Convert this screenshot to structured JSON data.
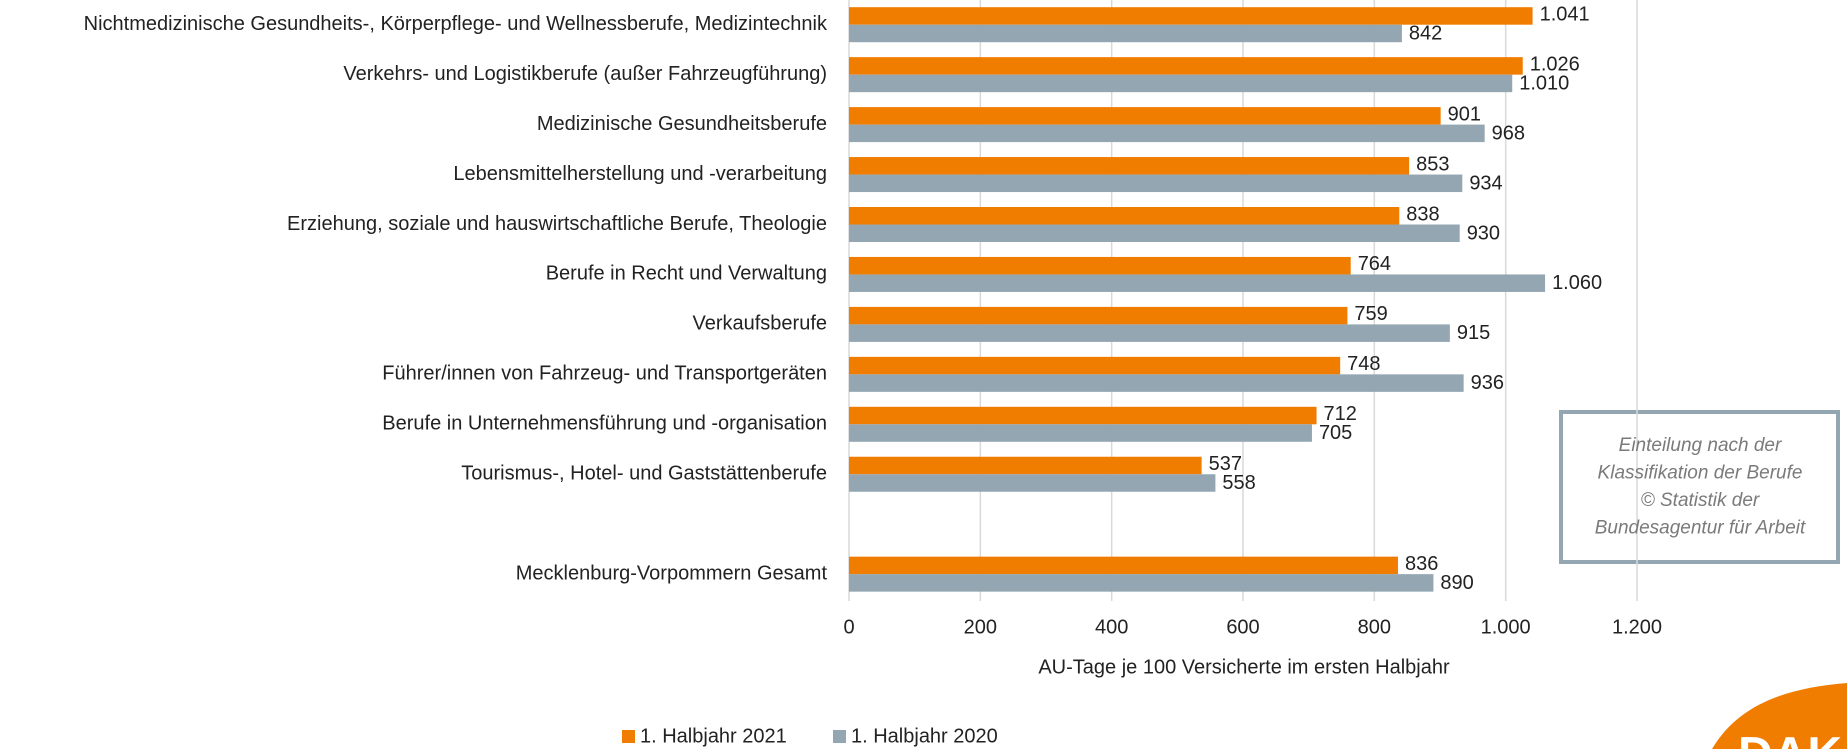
{
  "chart_data": {
    "type": "bar",
    "orientation": "horizontal",
    "categories": [
      "Nichtmedizinische Gesundheits-, Körperpflege- und Wellnessberufe, Medizintechnik",
      "Verkehrs- und Logistikberufe (außer Fahrzeugführung)",
      "Medizinische Gesundheitsberufe",
      "Lebensmittelherstellung und -verarbeitung",
      "Erziehung, soziale und hauswirtschaftliche Berufe, Theologie",
      "Berufe in Recht und Verwaltung",
      "Verkaufsberufe",
      "Führer/innen von Fahrzeug- und Transportgeräten",
      "Berufe in Unternehmensführung und -organisation",
      "Tourismus-, Hotel- und Gaststättenberufe",
      null,
      "Mecklenburg-Vorpommern Gesamt"
    ],
    "series": [
      {
        "name": "1. Halbjahr 2021",
        "color": "#f07d00",
        "values": [
          1041,
          1026,
          901,
          853,
          838,
          764,
          759,
          748,
          712,
          537,
          null,
          836
        ],
        "value_labels": [
          "1.041",
          "1.026",
          "901",
          "853",
          "838",
          "764",
          "759",
          "748",
          "712",
          "537",
          null,
          "836"
        ]
      },
      {
        "name": "1. Halbjahr 2020",
        "color": "#93a6b1",
        "values": [
          842,
          1010,
          968,
          934,
          930,
          1060,
          915,
          936,
          705,
          558,
          null,
          890
        ],
        "value_labels": [
          "842",
          "1.010",
          "968",
          "934",
          "930",
          "1.060",
          "915",
          "936",
          "705",
          "558",
          null,
          "890"
        ]
      }
    ],
    "xlabel": "AU-Tage je 100 Versicherte im ersten Halbjahr",
    "xlim": [
      0,
      1200
    ],
    "xticks": [
      0,
      200,
      400,
      600,
      800,
      {
        "value": 1000,
        "label": "1.000"
      },
      {
        "value": 1200,
        "label": "1.200"
      }
    ],
    "grid": true,
    "legend": "bottom",
    "note": [
      "Einteilung nach der",
      "Klassifikation der Berufe",
      "© Statistik der",
      "Bundesagentur für Arbeit"
    ],
    "logo": "DAK"
  }
}
